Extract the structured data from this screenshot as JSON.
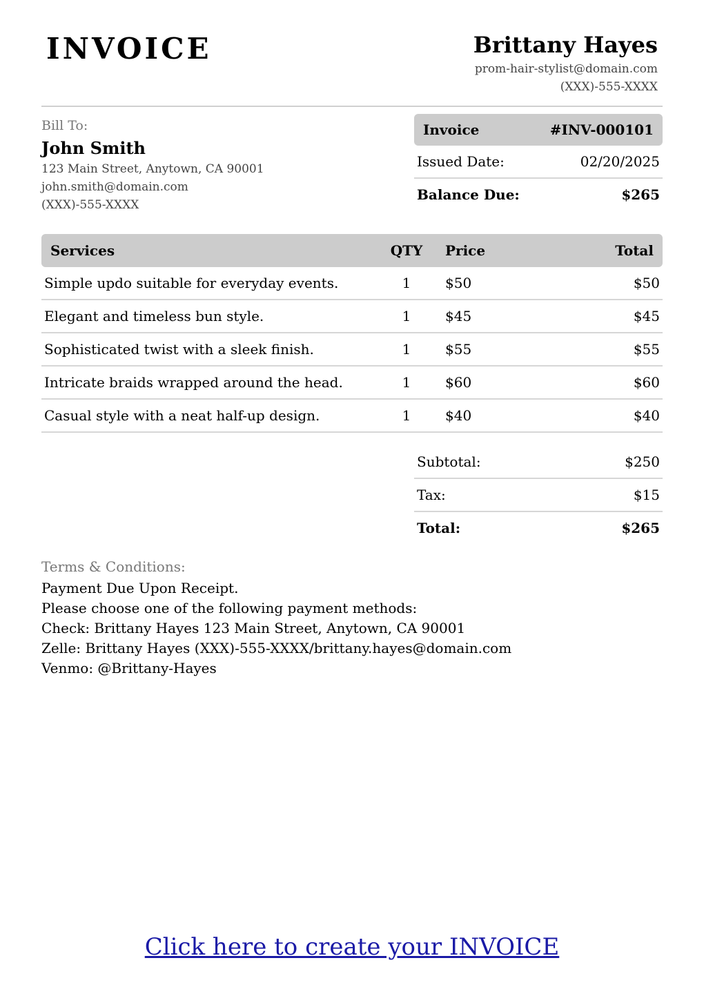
{
  "header": {
    "title": "INVOICE",
    "business_name": "Brittany Hayes",
    "business_email": "prom-hair-stylist@domain.com",
    "business_phone": "(XXX)-555-XXXX"
  },
  "bill_to": {
    "label": "Bill To:",
    "name": "John Smith",
    "address": "123 Main Street, Anytown, CA 90001",
    "email": "john.smith@domain.com",
    "phone": "(XXX)-555-XXXX"
  },
  "invoice_info": {
    "label": "Invoice",
    "number": "#INV-000101",
    "issued_label": "Issued Date:",
    "issued_date": "02/20/2025",
    "balance_label": "Balance Due:",
    "balance": "$265"
  },
  "services": {
    "headers": [
      "Services",
      "QTY",
      "Price",
      "Total"
    ],
    "rows": [
      {
        "desc": "Simple updo suitable for everyday events.",
        "qty": "1",
        "price": "$50",
        "total": "$50"
      },
      {
        "desc": "Elegant and timeless bun style.",
        "qty": "1",
        "price": "$45",
        "total": "$45"
      },
      {
        "desc": "Sophisticated twist with a sleek finish.",
        "qty": "1",
        "price": "$55",
        "total": "$55"
      },
      {
        "desc": "Intricate braids wrapped around the head.",
        "qty": "1",
        "price": "$60",
        "total": "$60"
      },
      {
        "desc": "Casual style with a neat half-up design.",
        "qty": "1",
        "price": "$40",
        "total": "$40"
      }
    ]
  },
  "totals": {
    "subtotal_label": "Subtotal:",
    "subtotal": "$250",
    "tax_label": "Tax:",
    "tax": "$15",
    "total_label": "Total:",
    "total": "$265"
  },
  "terms": {
    "label": "Terms & Conditions:",
    "lines": [
      "Payment Due Upon Receipt.",
      "Please choose one of the following payment methods:",
      "Check: Brittany Hayes 123 Main Street, Anytown, CA 90001",
      "Zelle: Brittany Hayes (XXX)-555-XXXX/brittany.hayes@domain.com",
      "Venmo: @Brittany-Hayes"
    ]
  },
  "footer": {
    "link": "Click here to create your INVOICE"
  }
}
